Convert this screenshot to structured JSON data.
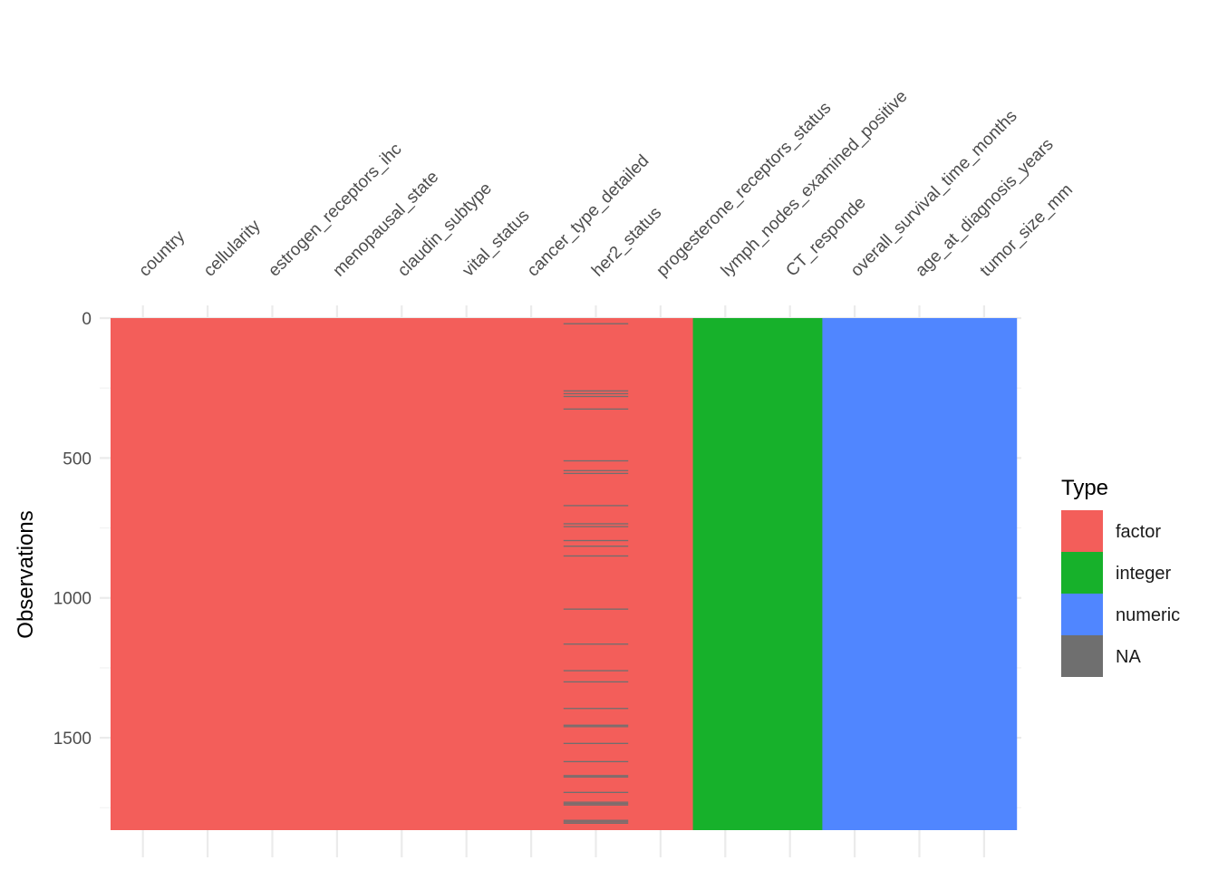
{
  "chart_data": {
    "type": "heatmap",
    "title": "",
    "xlabel": "",
    "ylabel": "Observations",
    "columns": [
      {
        "name": "country",
        "type": "factor"
      },
      {
        "name": "cellularity",
        "type": "factor"
      },
      {
        "name": "estrogen_receptors_ihc",
        "type": "factor"
      },
      {
        "name": "menopausal_state",
        "type": "factor"
      },
      {
        "name": "claudin_subtype",
        "type": "factor"
      },
      {
        "name": "vital_status",
        "type": "factor"
      },
      {
        "name": "cancer_type_detailed",
        "type": "factor"
      },
      {
        "name": "her2_status",
        "type": "factor"
      },
      {
        "name": "progesterone_receptors_status",
        "type": "factor"
      },
      {
        "name": "lymph_nodes_examined_positive",
        "type": "integer"
      },
      {
        "name": "CT_responde",
        "type": "integer"
      },
      {
        "name": "overall_survival_time_months",
        "type": "numeric"
      },
      {
        "name": "age_at_diagnosis_years",
        "type": "numeric"
      },
      {
        "name": "tumor_size_mm",
        "type": "numeric"
      }
    ],
    "n_observations": 1830,
    "ylim": [
      0,
      1830
    ],
    "y_reversed": true,
    "y_ticks": [
      0,
      500,
      1000,
      1500
    ],
    "y_tick_labels": [
      "0",
      "500",
      "1000",
      "1500"
    ],
    "missing": {
      "column": "her2_status",
      "rows": [
        20,
        260,
        270,
        280,
        325,
        510,
        545,
        555,
        670,
        735,
        745,
        795,
        815,
        850,
        1040,
        1165,
        1260,
        1300,
        1395,
        1455,
        1460,
        1520,
        1585,
        1635,
        1640,
        1695,
        1730,
        1735,
        1740,
        1795,
        1800,
        1805
      ]
    },
    "legend": {
      "title": "Type",
      "position": "right",
      "entries": [
        {
          "label": "factor",
          "color": "#F35E5A"
        },
        {
          "label": "integer",
          "color": "#17B12B"
        },
        {
          "label": "numeric",
          "color": "#5086FF"
        },
        {
          "label": "NA",
          "color": "#6F6F6F"
        }
      ]
    },
    "grid": true
  }
}
